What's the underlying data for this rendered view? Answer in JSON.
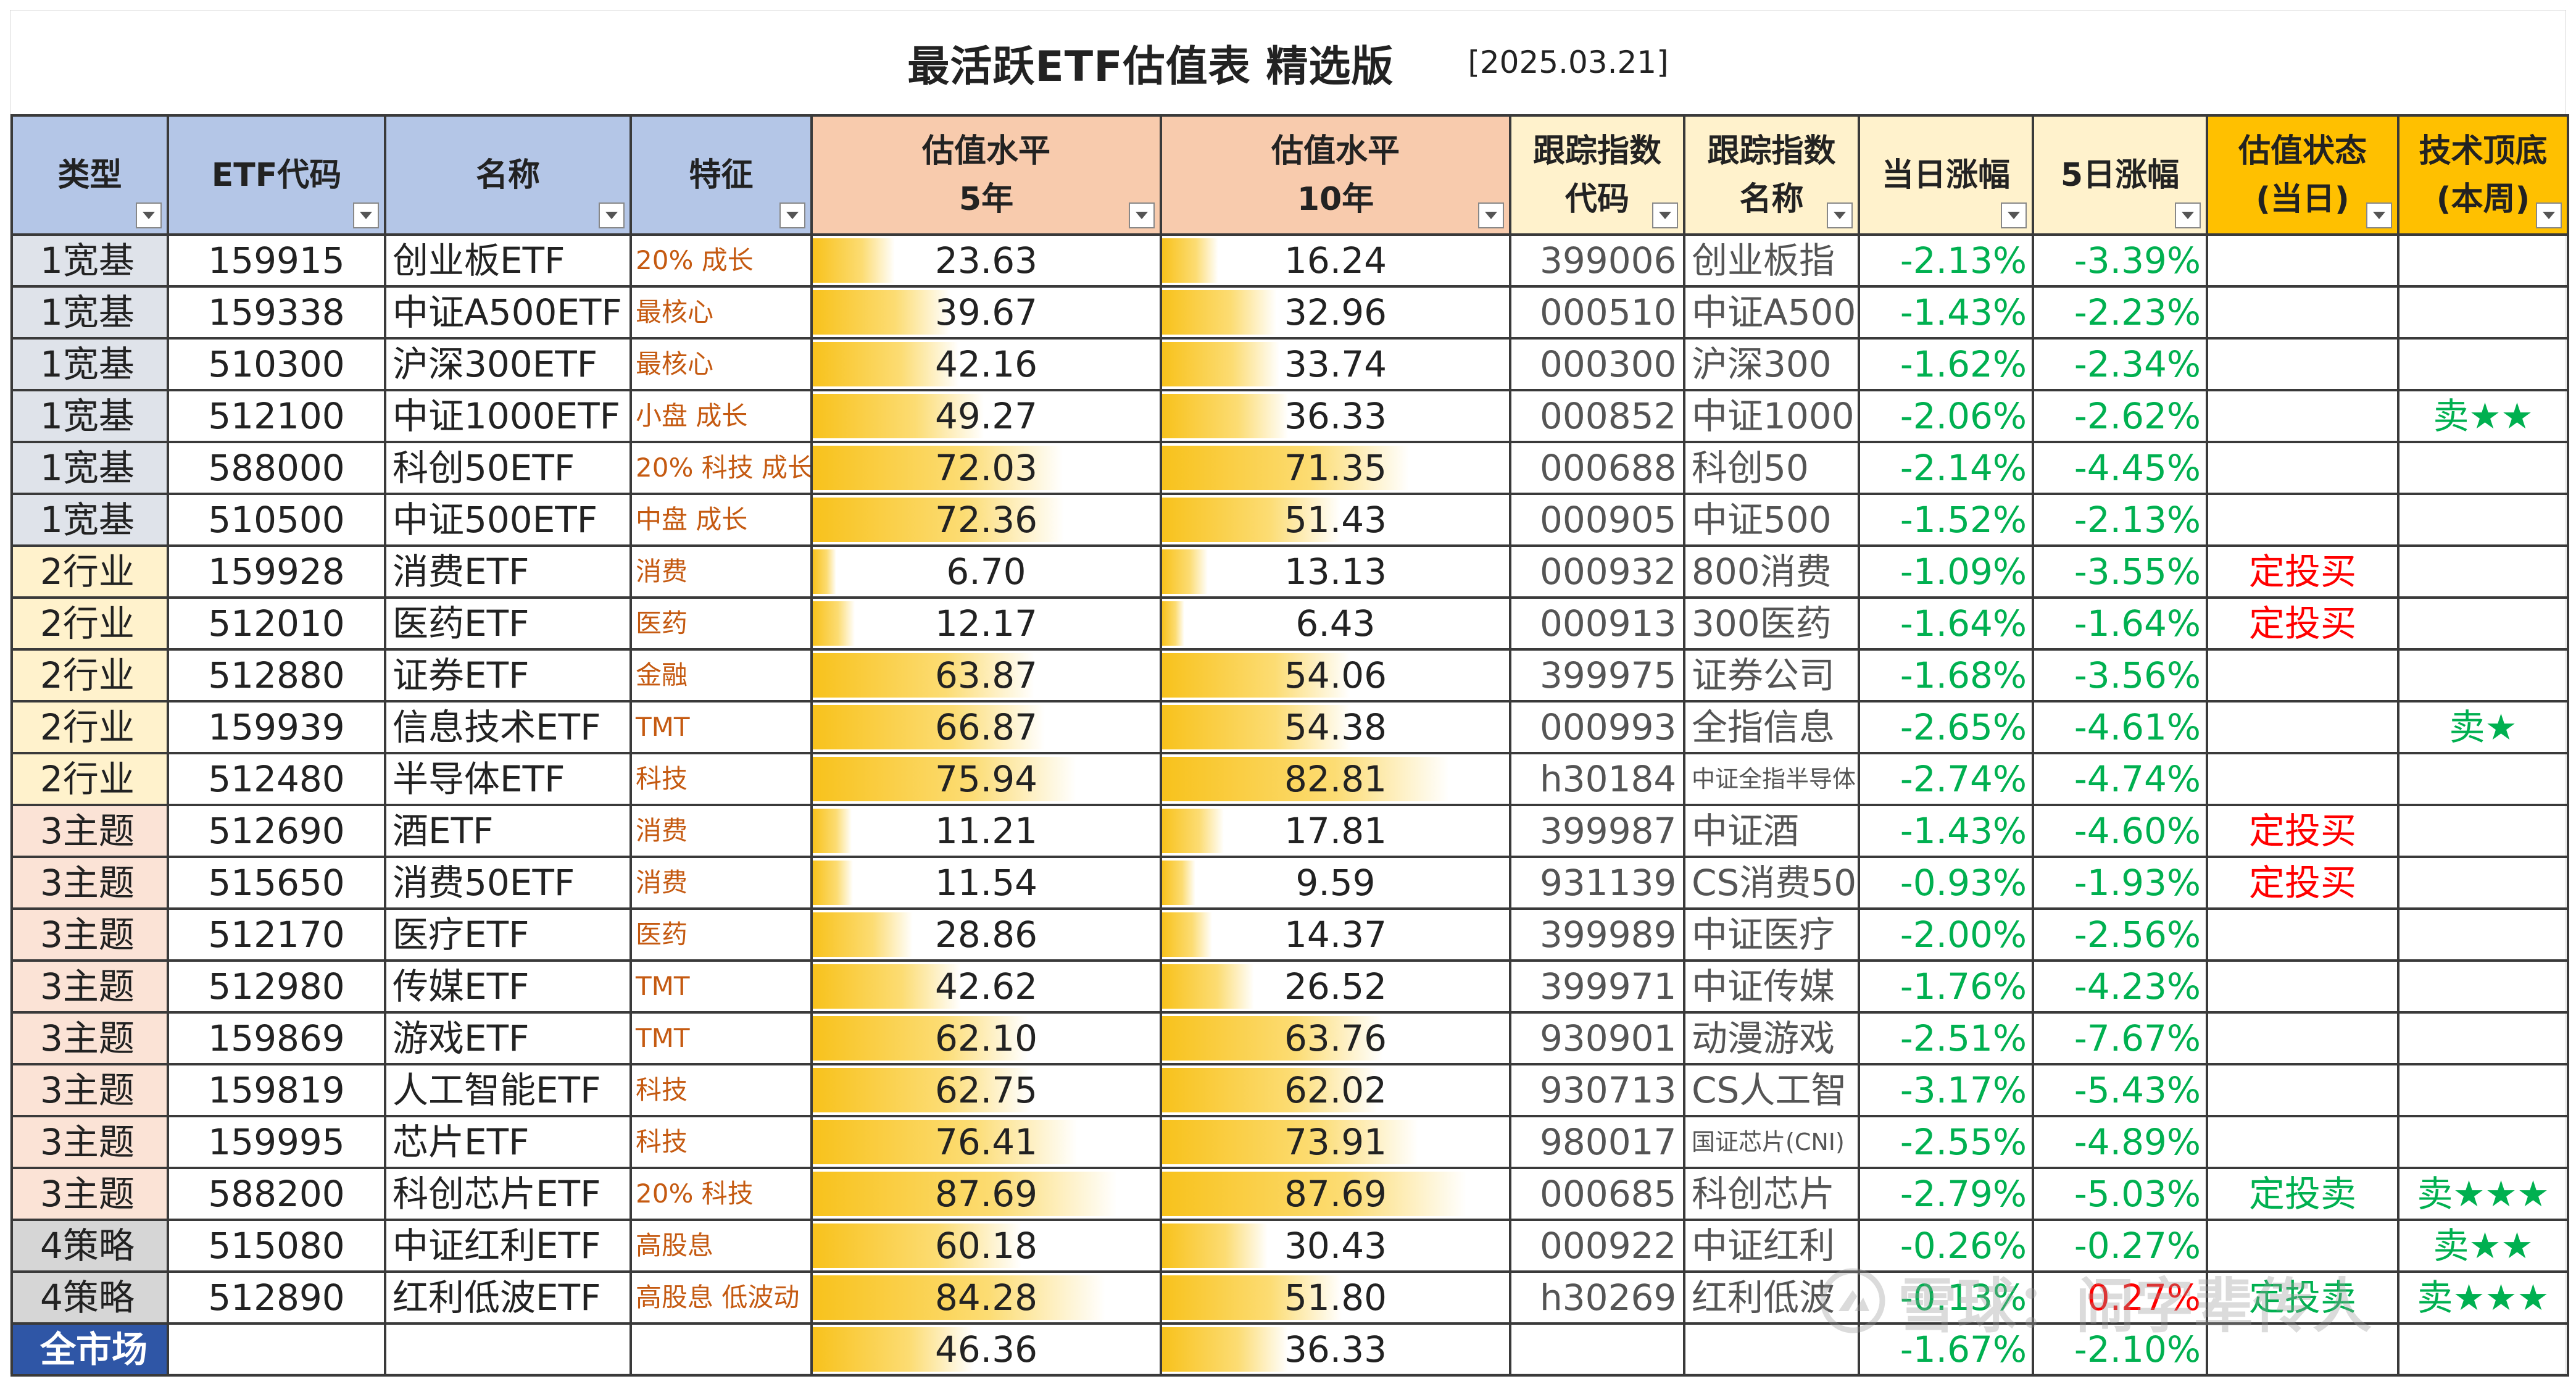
{
  "title": "最活跃ETF估值表 精选版",
  "date": "[2025.03.21]",
  "headers": {
    "type": "类型",
    "code": "ETF代码",
    "name": "名称",
    "feature": "特征",
    "val5": [
      "估值水平",
      "5年"
    ],
    "val10": [
      "估值水平",
      "10年"
    ],
    "index_code": [
      "跟踪指数",
      "代码"
    ],
    "index_name": [
      "跟踪指数",
      "名称"
    ],
    "chg1": "当日涨幅",
    "chg5": "5日涨幅",
    "status": [
      "估值状态",
      "(当日)"
    ],
    "peak": [
      "技术顶底",
      "(本周)"
    ]
  },
  "colors": {
    "header_blue": "#b4c6e7",
    "header_peach": "#f8cbad",
    "header_cream": "#fff2cc",
    "header_gold": "#ffc000",
    "positive": "#ff0000",
    "negative": "#00b050",
    "bar": "#f8c21c"
  },
  "rows": [
    {
      "type": "1宽基",
      "group": "broad",
      "code": "159915",
      "name": "创业板ETF",
      "feature": "20% 成长",
      "val5": "23.63",
      "val10": "16.24",
      "index_code": "399006",
      "index_name": "创业板指",
      "chg1": "-2.13%",
      "chg5": "-3.39%",
      "status": "",
      "peak": ""
    },
    {
      "type": "1宽基",
      "group": "broad",
      "code": "159338",
      "name": "中证A500ETF",
      "feature": "最核心",
      "val5": "39.67",
      "val10": "32.96",
      "index_code": "000510",
      "index_name": "中证A500",
      "chg1": "-1.43%",
      "chg5": "-2.23%",
      "status": "",
      "peak": ""
    },
    {
      "type": "1宽基",
      "group": "broad",
      "code": "510300",
      "name": "沪深300ETF",
      "feature": "最核心",
      "val5": "42.16",
      "val10": "33.74",
      "index_code": "000300",
      "index_name": "沪深300",
      "chg1": "-1.62%",
      "chg5": "-2.34%",
      "status": "",
      "peak": ""
    },
    {
      "type": "1宽基",
      "group": "broad",
      "code": "512100",
      "name": "中证1000ETF",
      "feature": "小盘 成长",
      "val5": "49.27",
      "val10": "36.33",
      "index_code": "000852",
      "index_name": "中证1000",
      "chg1": "-2.06%",
      "chg5": "-2.62%",
      "status": "",
      "peak": "卖★★"
    },
    {
      "type": "1宽基",
      "group": "broad",
      "code": "588000",
      "name": "科创50ETF",
      "feature": "20% 科技 成长",
      "val5": "72.03",
      "val10": "71.35",
      "index_code": "000688",
      "index_name": "科创50",
      "chg1": "-2.14%",
      "chg5": "-4.45%",
      "status": "",
      "peak": ""
    },
    {
      "type": "1宽基",
      "group": "broad",
      "code": "510500",
      "name": "中证500ETF",
      "feature": "中盘 成长",
      "val5": "72.36",
      "val10": "51.43",
      "index_code": "000905",
      "index_name": "中证500",
      "chg1": "-1.52%",
      "chg5": "-2.13%",
      "status": "",
      "peak": ""
    },
    {
      "type": "2行业",
      "group": "industry",
      "code": "159928",
      "name": "消费ETF",
      "feature": "消费",
      "val5": "6.70",
      "val10": "13.13",
      "index_code": "000932",
      "index_name": "800消费",
      "chg1": "-1.09%",
      "chg5": "-3.55%",
      "status": "定投买",
      "peak": ""
    },
    {
      "type": "2行业",
      "group": "industry",
      "code": "512010",
      "name": "医药ETF",
      "feature": "医药",
      "val5": "12.17",
      "val10": "6.43",
      "index_code": "000913",
      "index_name": "300医药",
      "chg1": "-1.64%",
      "chg5": "-1.64%",
      "status": "定投买",
      "peak": ""
    },
    {
      "type": "2行业",
      "group": "industry",
      "code": "512880",
      "name": "证券ETF",
      "feature": "金融",
      "val5": "63.87",
      "val10": "54.06",
      "index_code": "399975",
      "index_name": "证券公司",
      "chg1": "-1.68%",
      "chg5": "-3.56%",
      "status": "",
      "peak": ""
    },
    {
      "type": "2行业",
      "group": "industry",
      "code": "159939",
      "name": "信息技术ETF",
      "feature": "TMT",
      "val5": "66.87",
      "val10": "54.38",
      "index_code": "000993",
      "index_name": "全指信息",
      "chg1": "-2.65%",
      "chg5": "-4.61%",
      "status": "",
      "peak": "卖★"
    },
    {
      "type": "2行业",
      "group": "industry",
      "code": "512480",
      "name": "半导体ETF",
      "feature": "科技",
      "val5": "75.94",
      "val10": "82.81",
      "index_code": "h30184",
      "index_name": "中证全指半导体",
      "index_name_small": true,
      "chg1": "-2.74%",
      "chg5": "-4.74%",
      "status": "",
      "peak": ""
    },
    {
      "type": "3主题",
      "group": "theme",
      "code": "512690",
      "name": "酒ETF",
      "feature": "消费",
      "val5": "11.21",
      "val10": "17.81",
      "index_code": "399987",
      "index_name": "中证酒",
      "chg1": "-1.43%",
      "chg5": "-4.60%",
      "status": "定投买",
      "peak": ""
    },
    {
      "type": "3主题",
      "group": "theme",
      "code": "515650",
      "name": "消费50ETF",
      "feature": "消费",
      "val5": "11.54",
      "val10": "9.59",
      "index_code": "931139",
      "index_name": "CS消费50",
      "chg1": "-0.93%",
      "chg5": "-1.93%",
      "status": "定投买",
      "peak": ""
    },
    {
      "type": "3主题",
      "group": "theme",
      "code": "512170",
      "name": "医疗ETF",
      "feature": "医药",
      "val5": "28.86",
      "val10": "14.37",
      "index_code": "399989",
      "index_name": "中证医疗",
      "chg1": "-2.00%",
      "chg5": "-2.56%",
      "status": "",
      "peak": ""
    },
    {
      "type": "3主题",
      "group": "theme",
      "code": "512980",
      "name": "传媒ETF",
      "feature": "TMT",
      "val5": "42.62",
      "val10": "26.52",
      "index_code": "399971",
      "index_name": "中证传媒",
      "chg1": "-1.76%",
      "chg5": "-4.23%",
      "status": "",
      "peak": ""
    },
    {
      "type": "3主题",
      "group": "theme",
      "code": "159869",
      "name": "游戏ETF",
      "feature": "TMT",
      "val5": "62.10",
      "val10": "63.76",
      "index_code": "930901",
      "index_name": "动漫游戏",
      "chg1": "-2.51%",
      "chg5": "-7.67%",
      "status": "",
      "peak": ""
    },
    {
      "type": "3主题",
      "group": "theme",
      "code": "159819",
      "name": "人工智能ETF",
      "feature": "科技",
      "val5": "62.75",
      "val10": "62.02",
      "index_code": "930713",
      "index_name": "CS人工智",
      "chg1": "-3.17%",
      "chg5": "-5.43%",
      "status": "",
      "peak": ""
    },
    {
      "type": "3主题",
      "group": "theme",
      "code": "159995",
      "name": "芯片ETF",
      "feature": "科技",
      "val5": "76.41",
      "val10": "73.91",
      "index_code": "980017",
      "index_name": "国证芯片(CNI)",
      "index_name_small": true,
      "chg1": "-2.55%",
      "chg5": "-4.89%",
      "status": "",
      "peak": ""
    },
    {
      "type": "3主题",
      "group": "theme",
      "code": "588200",
      "name": "科创芯片ETF",
      "feature": "20% 科技",
      "val5": "87.69",
      "val10": "87.69",
      "index_code": "000685",
      "index_name": "科创芯片",
      "chg1": "-2.79%",
      "chg5": "-5.03%",
      "status": "定投卖",
      "peak": "卖★★★"
    },
    {
      "type": "4策略",
      "group": "strategy",
      "code": "515080",
      "name": "中证红利ETF",
      "feature": "高股息",
      "val5": "60.18",
      "val10": "30.43",
      "index_code": "000922",
      "index_name": "中证红利",
      "chg1": "-0.26%",
      "chg5": "-0.27%",
      "status": "",
      "peak": "卖★★"
    },
    {
      "type": "4策略",
      "group": "strategy",
      "code": "512890",
      "name": "红利低波ETF",
      "feature": "高股息 低波动",
      "val5": "84.28",
      "val10": "51.80",
      "index_code": "h30269",
      "index_name": "红利低波",
      "chg1": "-0.13%",
      "chg5": "0.27%",
      "status": "定投卖",
      "peak": "卖★★★"
    },
    {
      "type": "全市场",
      "group": "market",
      "code": "",
      "name": "",
      "feature": "",
      "val5": "46.36",
      "val10": "36.33",
      "index_code": "",
      "index_name": "",
      "chg1": "-1.67%",
      "chg5": "-2.10%",
      "status": "",
      "peak": ""
    }
  ],
  "watermark": "雪球：闹字辈传人"
}
